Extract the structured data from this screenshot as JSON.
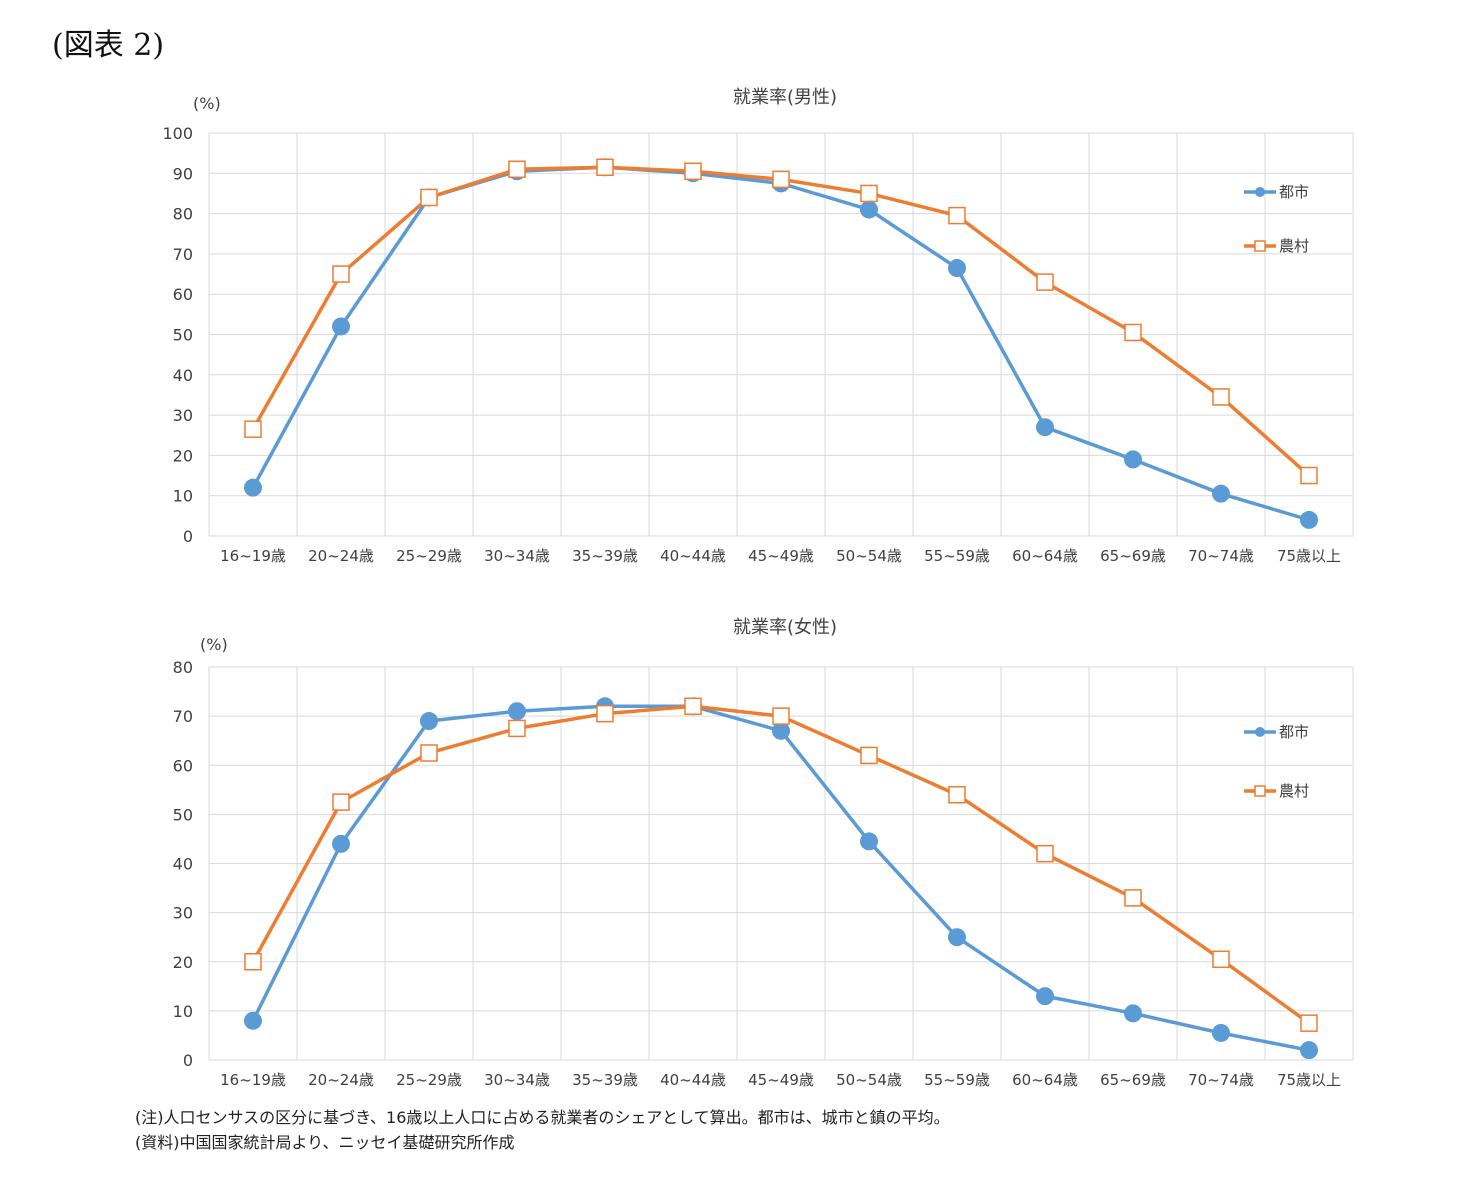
{
  "figure_label": "(図表 2)",
  "notes": [
    "(注)人口センサスの区分に基づき、16歳以上人口に占める就業者のシェアとして算出。都市は、城市と鎮の平均。",
    "(資料)中国国家統計局より、ニッセイ基礎研究所作成"
  ],
  "colors": {
    "urban": "#5b9bd5",
    "rural": "#ed7d31",
    "grid": "#d9d9d9",
    "text": "#404040"
  },
  "chart_data": [
    {
      "type": "line",
      "title": "就業率(男性)",
      "ylabel": "(%)",
      "ylim": [
        0,
        100
      ],
      "yticks": [
        "0",
        "10",
        "20",
        "30",
        "40",
        "50",
        "60",
        "70",
        "80",
        "90",
        "100"
      ],
      "categories": [
        "16~19歳",
        "20~24歳",
        "25~29歳",
        "30~34歳",
        "35~39歳",
        "40~44歳",
        "45~49歳",
        "50~54歳",
        "55~59歳",
        "60~64歳",
        "65~69歳",
        "70~74歳",
        "75歳以上"
      ],
      "grid": true,
      "legend": "right",
      "series": [
        {
          "name": "都市",
          "marker": "circle",
          "values": [
            12,
            52,
            84,
            90.5,
            91.5,
            90,
            87.5,
            81,
            66.5,
            27,
            19,
            10.5,
            4
          ]
        },
        {
          "name": "農村",
          "marker": "square",
          "values": [
            26.5,
            65,
            84,
            91,
            91.5,
            90.5,
            88.5,
            85,
            79.5,
            63,
            50.5,
            34.5,
            15
          ]
        }
      ]
    },
    {
      "type": "line",
      "title": "就業率(女性)",
      "ylabel": "(%)",
      "ylim": [
        0,
        80
      ],
      "yticks": [
        "0",
        "10",
        "20",
        "30",
        "40",
        "50",
        "60",
        "70",
        "80"
      ],
      "categories": [
        "16~19歳",
        "20~24歳",
        "25~29歳",
        "30~34歳",
        "35~39歳",
        "40~44歳",
        "45~49歳",
        "50~54歳",
        "55~59歳",
        "60~64歳",
        "65~69歳",
        "70~74歳",
        "75歳以上"
      ],
      "grid": true,
      "legend": "right",
      "series": [
        {
          "name": "都市",
          "marker": "circle",
          "values": [
            8,
            44,
            69,
            71,
            72,
            72,
            67,
            44.5,
            25,
            13,
            9.5,
            5.5,
            2
          ]
        },
        {
          "name": "農村",
          "marker": "square",
          "values": [
            20,
            52.5,
            62.5,
            67.5,
            70.5,
            72,
            70,
            62,
            54,
            42,
            33,
            20.5,
            7.5
          ]
        }
      ]
    }
  ]
}
